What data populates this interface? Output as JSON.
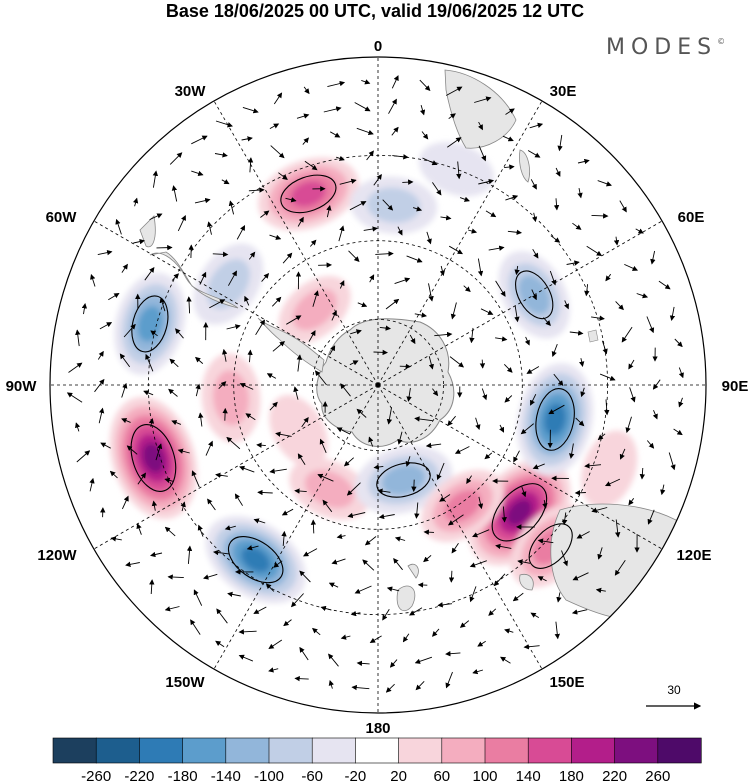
{
  "title": "Base 18/06/2025 00 UTC, valid 19/06/2025 12 UTC",
  "brand": {
    "name": "MODES",
    "mark": "©"
  },
  "longitude_labels": [
    {
      "text": "0",
      "pos": "top"
    },
    {
      "text": "30E",
      "pos": "upper-right"
    },
    {
      "text": "60E",
      "pos": "right-upper"
    },
    {
      "text": "90E",
      "pos": "right"
    },
    {
      "text": "120E",
      "pos": "right-lower"
    },
    {
      "text": "150E",
      "pos": "lower-right"
    },
    {
      "text": "180",
      "pos": "bottom"
    },
    {
      "text": "150W",
      "pos": "lower-left"
    },
    {
      "text": "120W",
      "pos": "left-lower"
    },
    {
      "text": "90W",
      "pos": "left"
    },
    {
      "text": "60W",
      "pos": "left-upper"
    },
    {
      "text": "30W",
      "pos": "upper-left"
    }
  ],
  "reference_vector": {
    "label": "30"
  },
  "colorbar": {
    "ticks": [
      "-260",
      "-220",
      "-180",
      "-140",
      "-100",
      "-60",
      "-20",
      "20",
      "60",
      "100",
      "140",
      "180",
      "220",
      "260"
    ],
    "colors": [
      "#1c3f5e",
      "#1d5e8e",
      "#2e7bb5",
      "#5c9dcc",
      "#92b6da",
      "#c1cfe6",
      "#e6e4f1",
      "#ffffff",
      "#f8d5dc",
      "#f4adbf",
      "#ea7da2",
      "#d84b95",
      "#b31e8a",
      "#7d0f7f",
      "#4e0a69"
    ]
  },
  "anomalies": [
    {
      "lon": 132,
      "r": 0.58,
      "val": 230
    },
    {
      "lon": 101,
      "r": 0.55,
      "val": -190
    },
    {
      "lon": 60,
      "r": 0.55,
      "val": -110
    },
    {
      "lon": 110,
      "r": 0.75,
      "val": 50
    },
    {
      "lon": -20,
      "r": 0.62,
      "val": 150
    },
    {
      "lon": 5,
      "r": 0.55,
      "val": -80
    },
    {
      "lon": 20,
      "r": 0.7,
      "val": -40
    },
    {
      "lon": -56,
      "r": 0.55,
      "val": -90
    },
    {
      "lon": -40,
      "r": 0.3,
      "val": 60
    },
    {
      "lon": -75,
      "r": 0.72,
      "val": -150
    },
    {
      "lon": -108,
      "r": 0.72,
      "val": 240
    },
    {
      "lon": -145,
      "r": 0.65,
      "val": -180
    },
    {
      "lon": -155,
      "r": 0.35,
      "val": 70
    },
    {
      "lon": 165,
      "r": 0.3,
      "val": -130
    },
    {
      "lon": 145,
      "r": 0.45,
      "val": 100
    },
    {
      "lon": 133,
      "r": 0.72,
      "val": 120
    },
    {
      "lon": -95,
      "r": 0.45,
      "val": 90
    },
    {
      "lon": -120,
      "r": 0.28,
      "val": 40
    }
  ]
}
